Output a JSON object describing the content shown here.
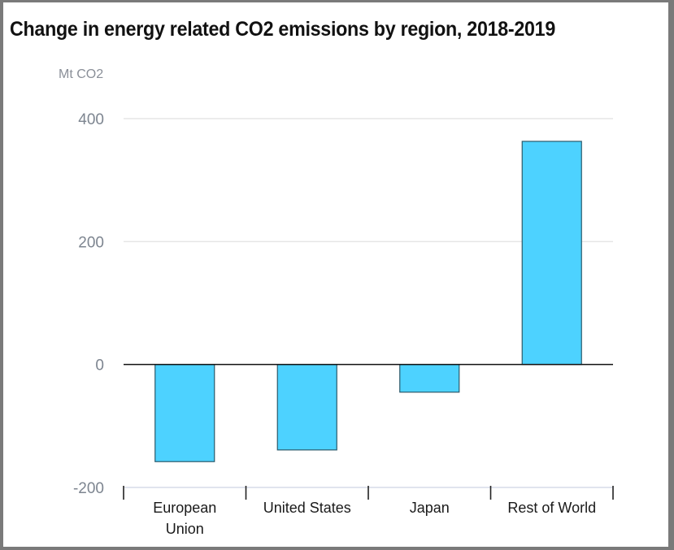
{
  "chart_data": {
    "type": "bar",
    "title": "Change in energy related CO2 emissions by region, 2018-2019",
    "ylabel": "Mt CO2",
    "xlabel": "",
    "categories": [
      [
        "European",
        "Union"
      ],
      [
        "United States"
      ],
      [
        "Japan"
      ],
      [
        "Rest of World"
      ]
    ],
    "category_names": [
      "European Union",
      "United States",
      "Japan",
      "Rest of World"
    ],
    "values": [
      -158,
      -139,
      -45,
      363
    ],
    "ylim": [
      -200,
      400
    ],
    "yticks": [
      400,
      200,
      0,
      -200
    ],
    "ytick_labels": [
      "400",
      "200",
      "0",
      "-200"
    ],
    "grid": true,
    "legend": "none",
    "colors": {
      "bar_fill": "#4dd2ff",
      "bar_stroke": "#2b5a6b",
      "grid": "#e6e6e6",
      "zero_line": "#111111"
    }
  }
}
